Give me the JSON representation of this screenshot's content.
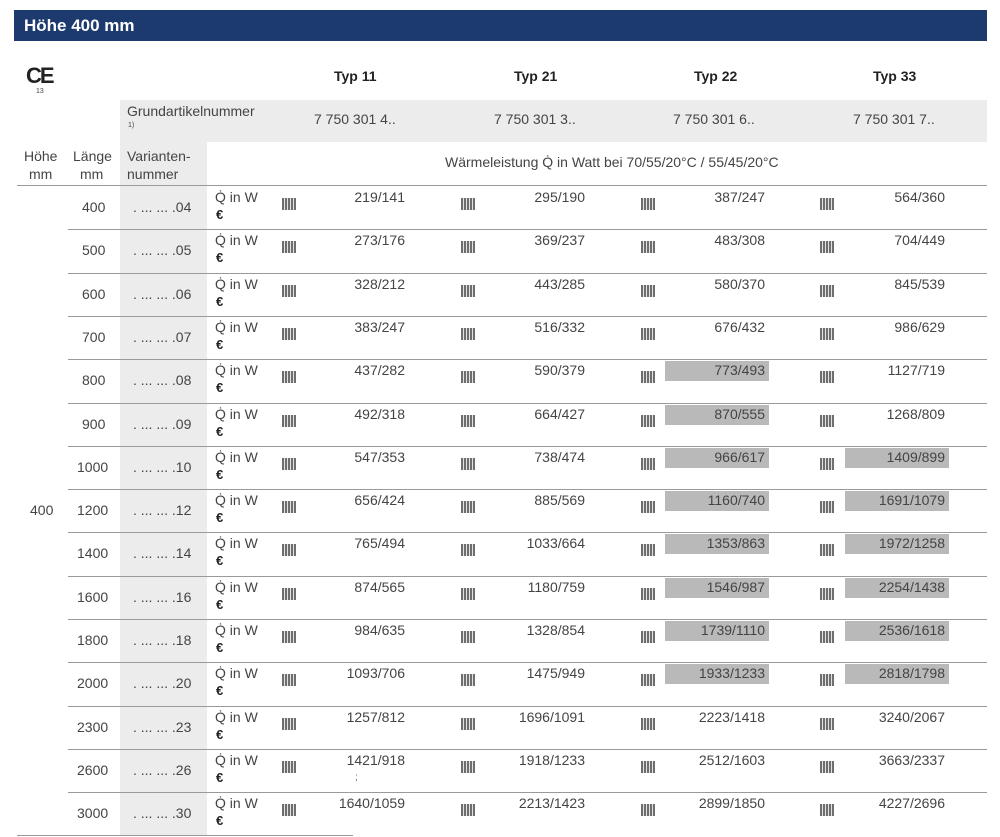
{
  "header": {
    "title": "Höhe 400 mm"
  },
  "ce": {
    "mark": "CE",
    "number": "13"
  },
  "types": [
    "Typ 11",
    "Typ 21",
    "Typ 22",
    "Typ 33"
  ],
  "grund": {
    "label": "Grundartikelnummer",
    "footnote": "1)",
    "numbers": [
      "7 750 301 4..",
      "7 750 301 3..",
      "7 750 301 6..",
      "7 750 301 7.."
    ]
  },
  "colheads": {
    "hoehe": "Höhe",
    "hoehe_unit": "mm",
    "laenge": "Länge",
    "laenge_unit": "mm",
    "variant1": "Varianten-",
    "variant2": "nummer",
    "waermeleistung": "Wärmeleistung Q̇ in Watt bei 70/55/20°C / 55/45/20°C"
  },
  "hoehe_value": "400",
  "q_label": "Q̇ in W",
  "euro_label": "€",
  "rows": [
    {
      "len": "400",
      "var": ". ... ... .04",
      "v": [
        "219/141",
        "295/190",
        "387/247",
        "564/360"
      ]
    },
    {
      "len": "500",
      "var": ". ... ... .05",
      "v": [
        "273/176",
        "369/237",
        "483/308",
        "704/449"
      ]
    },
    {
      "len": "600",
      "var": ". ... ... .06",
      "v": [
        "328/212",
        "443/285",
        "580/370",
        "845/539"
      ]
    },
    {
      "len": "700",
      "var": ". ... ... .07",
      "v": [
        "383/247",
        "516/332",
        "676/432",
        "986/629"
      ]
    },
    {
      "len": "800",
      "var": ". ... ... .08",
      "v": [
        "437/282",
        "590/379",
        "773/493",
        "1127/719"
      ]
    },
    {
      "len": "900",
      "var": ". ... ... .09",
      "v": [
        "492/318",
        "664/427",
        "870/555",
        "1268/809"
      ]
    },
    {
      "len": "1000",
      "var": ". ... ... .10",
      "v": [
        "547/353",
        "738/474",
        "966/617",
        "1409/899"
      ]
    },
    {
      "len": "1200",
      "var": ". ... ... .12",
      "v": [
        "656/424",
        "885/569",
        "1160/740",
        "1691/1079"
      ]
    },
    {
      "len": "1400",
      "var": ". ... ... .14",
      "v": [
        "765/494",
        "1033/664",
        "1353/863",
        "1972/1258"
      ]
    },
    {
      "len": "1600",
      "var": ". ... ... .16",
      "v": [
        "874/565",
        "1180/759",
        "1546/987",
        "2254/1438"
      ]
    },
    {
      "len": "1800",
      "var": ". ... ... .18",
      "v": [
        "984/635",
        "1328/854",
        "1739/1110",
        "2536/1618"
      ]
    },
    {
      "len": "2000",
      "var": ". ... ... .20",
      "v": [
        "1093/706",
        "1475/949",
        "1933/1233",
        "2818/1798"
      ]
    },
    {
      "len": "2300",
      "var": ". ... ... .23",
      "v": [
        "1257/812",
        "1696/1091",
        "2223/1418",
        "3240/2067"
      ]
    },
    {
      "len": "2600",
      "var": ". ... ... .26",
      "v": [
        "1421/918",
        "1918/1233",
        "2512/1603",
        "3663/2337"
      ]
    },
    {
      "len": "3000",
      "var": ". ... ... .30",
      "v": [
        "1640/1059",
        "2213/1423",
        "2899/1850",
        "4227/2696"
      ]
    }
  ],
  "highlighted": {
    "typ22": [
      "800",
      "900",
      "1000",
      "1200",
      "1400",
      "1600",
      "1800",
      "2000"
    ],
    "typ33": [
      "1000",
      "1200",
      "1400",
      "1600",
      "1800",
      "2000"
    ]
  },
  "stray_mark": ";"
}
